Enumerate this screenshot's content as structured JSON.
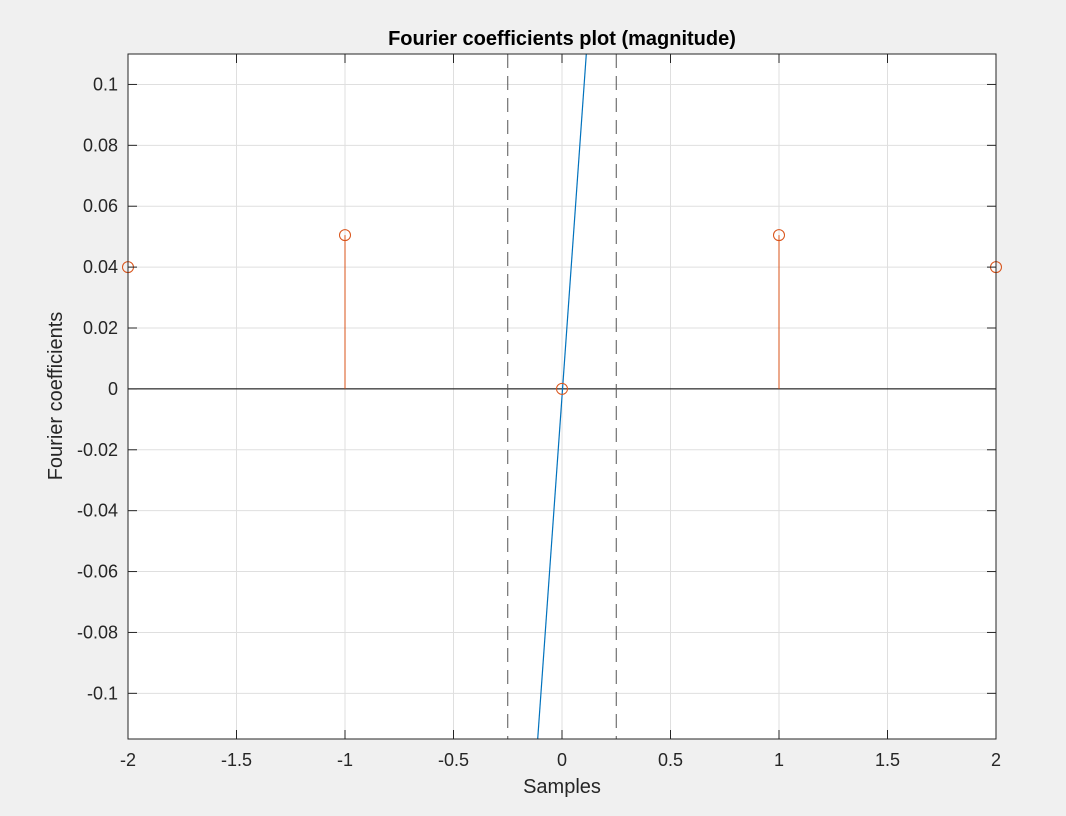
{
  "chart_data": {
    "type": "line",
    "title": "Fourier coefficients plot (magnitude)",
    "xlabel": "Samples",
    "ylabel": "Fourier coefficients",
    "xlim": [
      -2,
      2
    ],
    "ylim": [
      -0.115,
      0.11
    ],
    "grid": true,
    "x_ticks": [
      -2,
      -1.5,
      -1,
      -0.5,
      0,
      0.5,
      1,
      1.5,
      2
    ],
    "x_tick_labels": [
      "-2",
      "-1.5",
      "-1",
      "-0.5",
      "0",
      "0.5",
      "1",
      "1.5",
      "2"
    ],
    "y_ticks": [
      -0.1,
      -0.08,
      -0.06,
      -0.04,
      -0.02,
      0,
      0.02,
      0.04,
      0.06,
      0.08,
      0.1
    ],
    "y_tick_labels": [
      "-0.1",
      "-0.08",
      "-0.06",
      "-0.04",
      "-0.02",
      "0",
      "0.02",
      "0.04",
      "0.06",
      "0.08",
      "0.1"
    ],
    "stem": {
      "color": "#d95319",
      "x": [
        -2,
        -1,
        0,
        1,
        2
      ],
      "y": [
        0.04,
        0.0505,
        0,
        0.0505,
        0.04
      ]
    },
    "line": {
      "color": "#0072bd",
      "x": [
        -0.112,
        0.112
      ],
      "y": [
        -0.115,
        0.11
      ]
    },
    "vertical_dashed_lines": {
      "color": "#555555",
      "x": [
        -0.25,
        0.25
      ]
    },
    "zero_line": {
      "color": "#000000",
      "y": 0
    }
  }
}
